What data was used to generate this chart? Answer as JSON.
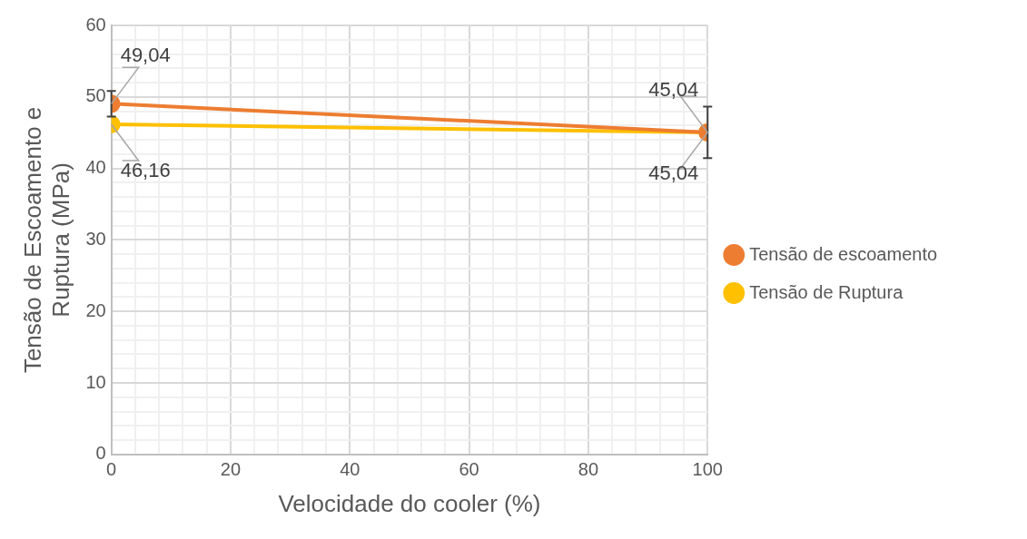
{
  "chart_data": {
    "type": "line",
    "xlabel": "Velocidade do cooler (%)",
    "ylabel": "Tensão de Escoamento e Ruptura (MPa)",
    "x": [
      0,
      100
    ],
    "series": [
      {
        "name": "Tensão de escoamento",
        "color": "#ed7d31",
        "values": [
          49.04,
          45.04
        ],
        "value_labels": [
          "49,04",
          "45,04"
        ],
        "errors": [
          1.8,
          3.6
        ]
      },
      {
        "name": "Tensão de Ruptura",
        "color": "#ffc000",
        "values": [
          46.16,
          45.04
        ],
        "value_labels": [
          "46,16",
          "45,04"
        ]
      }
    ],
    "marker": "circle",
    "grid": true,
    "legend": "right",
    "xlim": [
      0,
      100
    ],
    "xticks": [
      0,
      {
        "value": 4,
        "label": null
      },
      {
        "value": 8,
        "label": null
      },
      {
        "value": 12,
        "label": null
      },
      {
        "value": 16,
        "label": null
      },
      20,
      {
        "value": 24,
        "label": null
      },
      {
        "value": 28,
        "label": null
      },
      {
        "value": 32,
        "label": null
      },
      {
        "value": 36,
        "label": null
      },
      40,
      {
        "value": 44,
        "label": null
      },
      {
        "value": 48,
        "label": null
      },
      {
        "value": 52,
        "label": null
      },
      {
        "value": 56,
        "label": null
      },
      60,
      {
        "value": 64,
        "label": null
      },
      {
        "value": 68,
        "label": null
      },
      {
        "value": 72,
        "label": null
      },
      {
        "value": 76,
        "label": null
      },
      80,
      {
        "value": 84,
        "label": null
      },
      {
        "value": 88,
        "label": null
      },
      {
        "value": 92,
        "label": null
      },
      {
        "value": 96,
        "label": null
      },
      100
    ],
    "ylim": [
      0,
      60
    ],
    "yticks": [
      0,
      {
        "value": 2,
        "label": null
      },
      {
        "value": 4,
        "label": null
      },
      {
        "value": 6,
        "label": null
      },
      {
        "value": 8,
        "label": null
      },
      10,
      {
        "value": 12,
        "label": null
      },
      {
        "value": 14,
        "label": null
      },
      {
        "value": 16,
        "label": null
      },
      {
        "value": 18,
        "label": null
      },
      20,
      {
        "value": 22,
        "label": null
      },
      {
        "value": 24,
        "label": null
      },
      {
        "value": 26,
        "label": null
      },
      {
        "value": 28,
        "label": null
      },
      30,
      {
        "value": 32,
        "label": null
      },
      {
        "value": 34,
        "label": null
      },
      {
        "value": 36,
        "label": null
      },
      {
        "value": 38,
        "label": null
      },
      40,
      {
        "value": 42,
        "label": null
      },
      {
        "value": 44,
        "label": null
      },
      {
        "value": 46,
        "label": null
      },
      {
        "value": 48,
        "label": null
      },
      50,
      {
        "value": 52,
        "label": null
      },
      {
        "value": 54,
        "label": null
      },
      {
        "value": 56,
        "label": null
      },
      {
        "value": 58,
        "label": null
      },
      60
    ]
  }
}
